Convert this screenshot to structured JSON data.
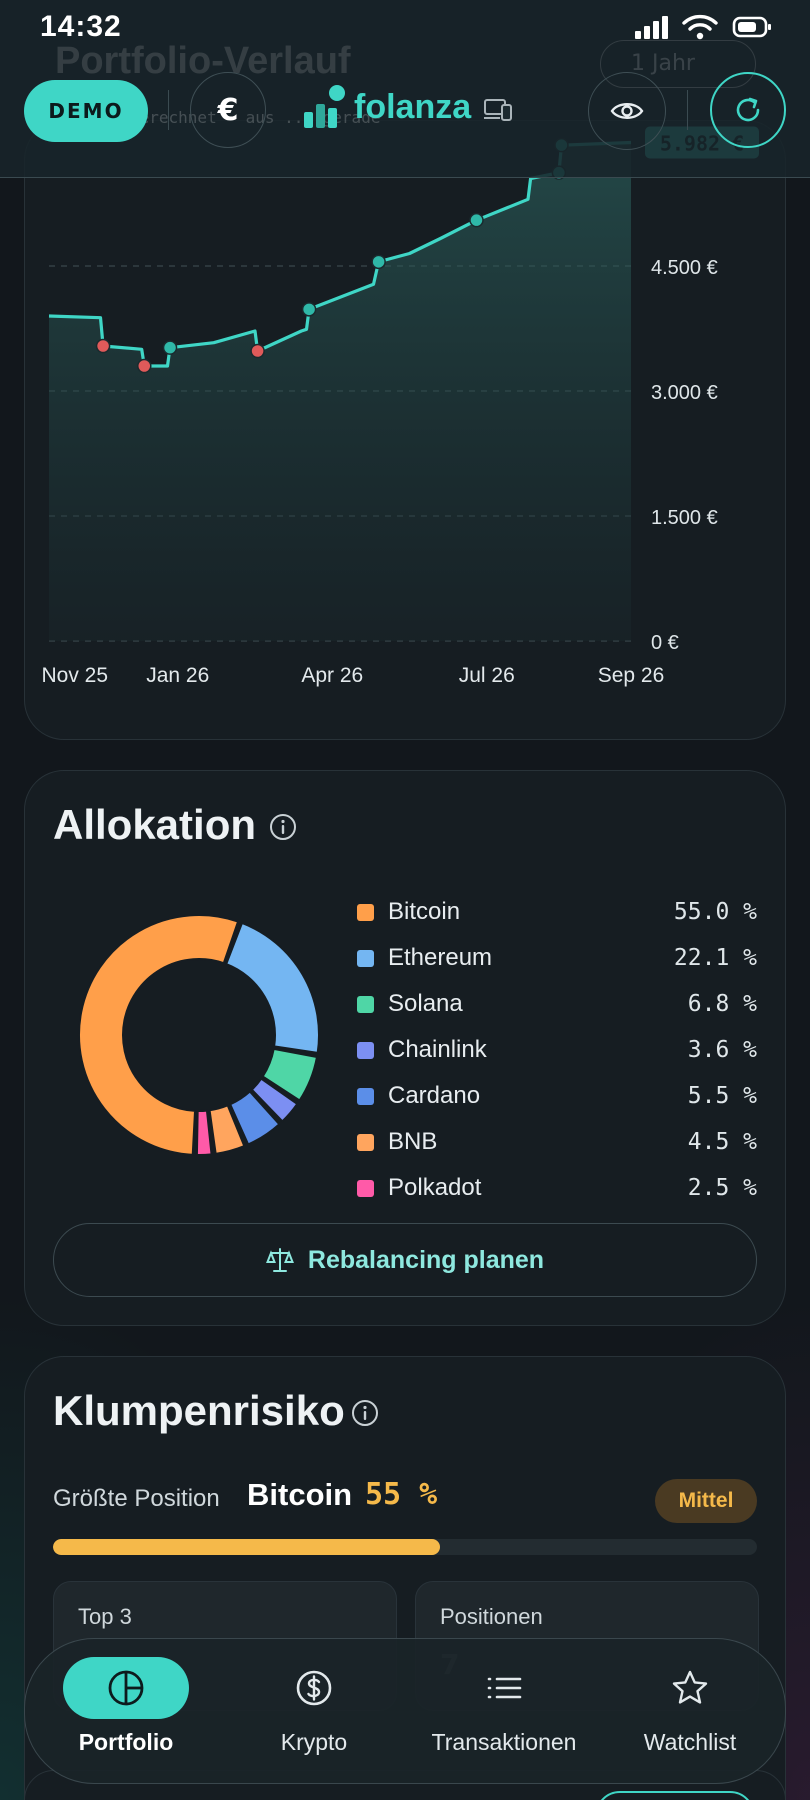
{
  "status_bar": {
    "time": "14:32"
  },
  "header": {
    "demo_label": "DEMO",
    "currency_symbol": "€",
    "app_name": "folanza",
    "ghost_title": "Portfolio-Verlauf",
    "ghost_range": "1 Jahr",
    "ghost_subtitle": "berechnet · aus ... gerade"
  },
  "chart_data": {
    "type": "area",
    "x_tick_labels": [
      "Nov 25",
      "Jan 26",
      "Apr 26",
      "Jul 26",
      "Sep 26"
    ],
    "y_tick_labels": [
      "0 €",
      "1.500 €",
      "3.000 €",
      "4.500 €"
    ],
    "ylim": [
      0,
      6000
    ],
    "current_value_label": "5.982 €",
    "current_value": 5982,
    "line_color": "#3fd6c6",
    "points": [
      {
        "m": 0.0,
        "v": 3900
      },
      {
        "m": 1.0,
        "v": 3880
      },
      {
        "m": 1.05,
        "v": 3540
      },
      {
        "m": 1.8,
        "v": 3500
      },
      {
        "m": 1.85,
        "v": 3300
      },
      {
        "m": 2.3,
        "v": 3300
      },
      {
        "m": 2.35,
        "v": 3520
      },
      {
        "m": 3.2,
        "v": 3580
      },
      {
        "m": 4.0,
        "v": 3720
      },
      {
        "m": 4.05,
        "v": 3480
      },
      {
        "m": 4.9,
        "v": 3720
      },
      {
        "m": 5.0,
        "v": 3740
      },
      {
        "m": 5.05,
        "v": 3980
      },
      {
        "m": 6.3,
        "v": 4280
      },
      {
        "m": 6.4,
        "v": 4550
      },
      {
        "m": 7.0,
        "v": 4650
      },
      {
        "m": 7.6,
        "v": 4830
      },
      {
        "m": 8.3,
        "v": 5050
      },
      {
        "m": 9.3,
        "v": 5300
      },
      {
        "m": 9.35,
        "v": 5550
      },
      {
        "m": 9.9,
        "v": 5620
      },
      {
        "m": 9.95,
        "v": 5950
      },
      {
        "m": 11.3,
        "v": 5982
      }
    ],
    "markers": [
      {
        "m": 1.05,
        "v": 3540,
        "type": "sell"
      },
      {
        "m": 1.85,
        "v": 3300,
        "type": "sell"
      },
      {
        "m": 2.35,
        "v": 3520,
        "type": "buy"
      },
      {
        "m": 4.05,
        "v": 3480,
        "type": "sell"
      },
      {
        "m": 5.05,
        "v": 3980,
        "type": "buy"
      },
      {
        "m": 6.4,
        "v": 4550,
        "type": "buy"
      },
      {
        "m": 8.3,
        "v": 5050,
        "type": "buy"
      },
      {
        "m": 9.9,
        "v": 5620,
        "type": "buy"
      },
      {
        "m": 9.95,
        "v": 5950,
        "type": "buy"
      }
    ],
    "buy_color": "#2fb8a8",
    "sell_color": "#e05a5a"
  },
  "allocation": {
    "title": "Allokation",
    "items": [
      {
        "name": "Bitcoin",
        "value": "55.0 %",
        "pct": 55.0,
        "color": "#ff9f4a"
      },
      {
        "name": "Ethereum",
        "value": "22.1 %",
        "pct": 22.1,
        "color": "#74b6f2"
      },
      {
        "name": "Solana",
        "value": "6.8 %",
        "pct": 6.8,
        "color": "#4fd6a6"
      },
      {
        "name": "Chainlink",
        "value": "3.6 %",
        "pct": 3.6,
        "color": "#7c8ff2"
      },
      {
        "name": "Cardano",
        "value": "5.5 %",
        "pct": 5.5,
        "color": "#5b8ee8"
      },
      {
        "name": "BNB",
        "value": "4.5 %",
        "pct": 4.5,
        "color": "#ffa55e"
      },
      {
        "name": "Polkadot",
        "value": "2.5 %",
        "pct": 2.5,
        "color": "#ff5aa8"
      }
    ],
    "rebalance_label": "Rebalancing planen"
  },
  "risk": {
    "title": "Klumpenrisiko",
    "largest_label": "Größte Position",
    "largest_name": "Bitcoin",
    "largest_pct": "55 %",
    "largest_fraction": 0.55,
    "level_label": "Mittel",
    "top3_label": "Top 3",
    "positions_label": "Positionen",
    "positions_value": "7"
  },
  "nav": {
    "items": [
      {
        "label": "Portfolio",
        "icon": "pie-chart-icon"
      },
      {
        "label": "Krypto",
        "icon": "dollar-coin-icon"
      },
      {
        "label": "Transaktionen",
        "icon": "list-icon"
      },
      {
        "label": "Watchlist",
        "icon": "star-icon"
      }
    ]
  }
}
